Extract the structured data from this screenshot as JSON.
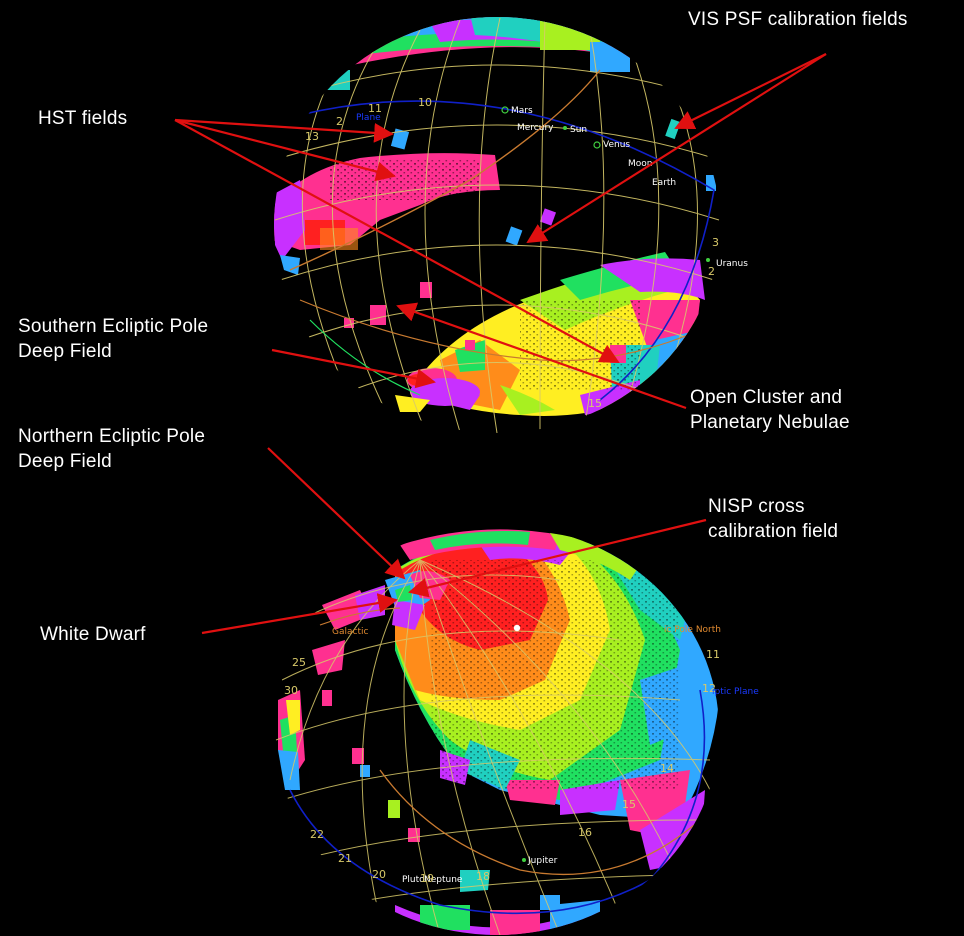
{
  "colors": {
    "background": "#000000",
    "grid": "#d8c96a",
    "arrow": "#e01010",
    "ecliptic_plane": "#1020c8",
    "galactic_plane": "#c87a30",
    "planet_label": "#ffffff",
    "planet_marker": "#40d040",
    "survey_palette": [
      "#ff2020",
      "#ff8c1a",
      "#ffee22",
      "#a8f020",
      "#20e060",
      "#20d0c0",
      "#30a8ff",
      "#ff3090",
      "#c830ff"
    ]
  },
  "callouts": {
    "vis_psf": "VIS PSF calibration fields",
    "hst_fields": "HST fields",
    "south_pole_line1": "Southern Ecliptic Pole",
    "south_pole_line2": "Deep Field",
    "open_cluster_line1": "Open Cluster and",
    "open_cluster_line2": "Planetary Nebulae",
    "north_pole_line1": "Northern Ecliptic Pole",
    "north_pole_line2": "Deep Field",
    "nisp_line1": "NISP cross",
    "nisp_line2": "calibration field",
    "white_dwarf": "White Dwarf"
  },
  "top_sphere": {
    "planets": [
      "Mars",
      "Mercury",
      "Sun",
      "Venus",
      "Moon",
      "Earth",
      "Uranus"
    ],
    "hour_labels": [
      "11",
      "10",
      "2",
      "13",
      "3",
      "2",
      "15"
    ],
    "plane_label": "Plane"
  },
  "bottom_sphere": {
    "planets": [
      "Jupiter",
      "Pluto",
      "Neptune"
    ],
    "hour_labels": [
      "11",
      "12",
      "14",
      "15",
      "16",
      "18",
      "19",
      "20",
      "21",
      "22",
      "25",
      "30"
    ],
    "pole_label": "ic Pole North",
    "plane_label": "iptic Plane",
    "galactic_label": "Galactic"
  }
}
